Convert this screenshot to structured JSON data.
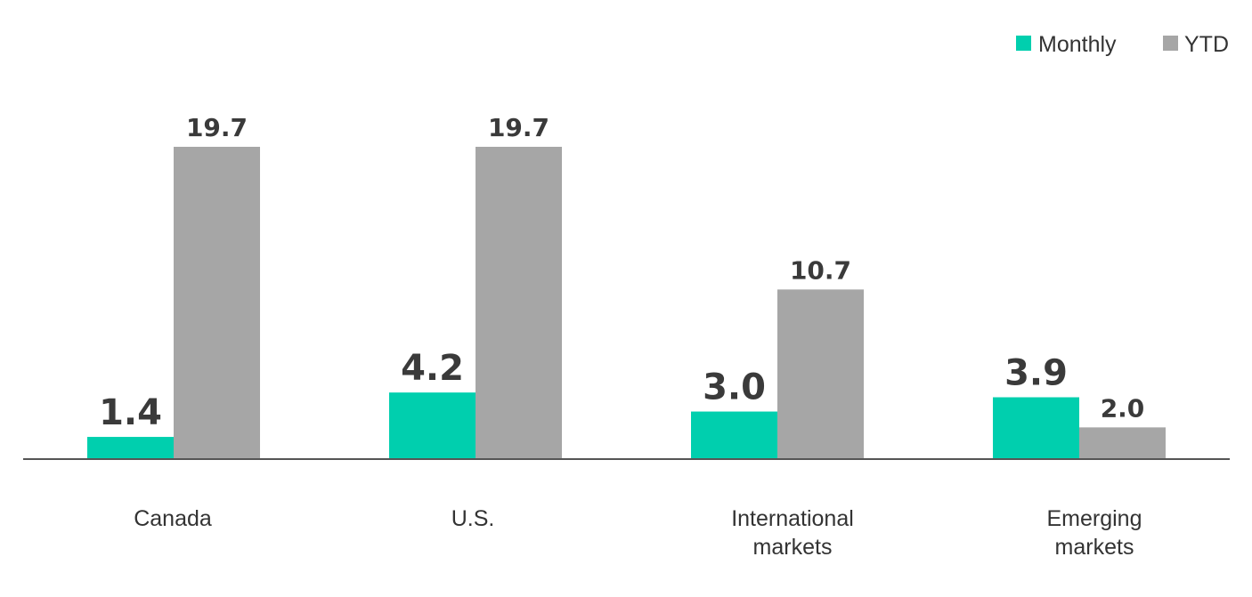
{
  "chart_data": {
    "type": "bar",
    "categories": [
      [
        "Canada"
      ],
      [
        "U.S."
      ],
      [
        "International",
        "markets"
      ],
      [
        "Emerging",
        "markets"
      ]
    ],
    "series": [
      {
        "name": "Monthly",
        "values": [
          1.4,
          4.2,
          3.0,
          3.9
        ],
        "color": "#00cfae"
      },
      {
        "name": "YTD",
        "values": [
          19.7,
          19.7,
          10.7,
          2.0
        ],
        "color": "#a6a6a6"
      }
    ],
    "value_labels": [
      [
        "1.4",
        "4.2",
        "3.0",
        "3.9"
      ],
      [
        "19.7",
        "19.7",
        "10.7",
        "2.0"
      ]
    ],
    "ylim": [
      0,
      19.7
    ],
    "grid": false,
    "legend_position": "top-right",
    "baseline_color": "#555555"
  }
}
